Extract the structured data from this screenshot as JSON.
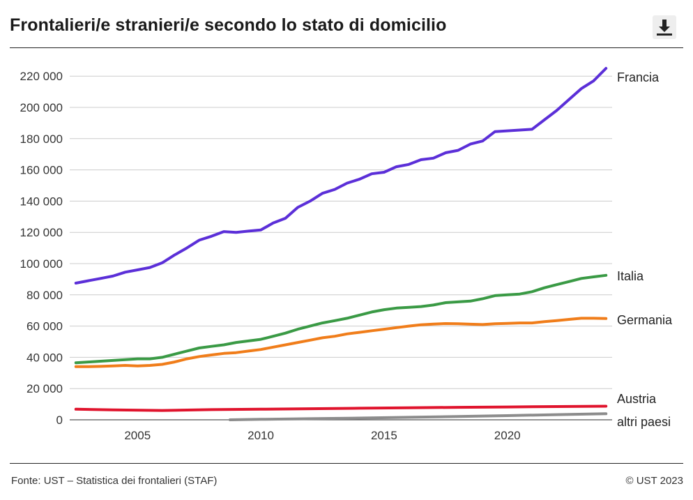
{
  "header": {
    "title": "Frontalieri/e stranieri/e secondo lo stato di domicilio",
    "download_icon": "download-icon"
  },
  "footer": {
    "source": "Fonte: UST – Statistica dei frontalieri (STAF)",
    "copyright": "© UST 2023"
  },
  "chart_data": {
    "type": "line",
    "xlim": [
      2002.25,
      2024.25
    ],
    "ylim": [
      0,
      225000
    ],
    "yticks": [
      0,
      20000,
      40000,
      60000,
      80000,
      100000,
      120000,
      140000,
      160000,
      180000,
      200000,
      220000
    ],
    "ytick_labels": [
      "0",
      "20 000",
      "40 000",
      "60 000",
      "80 000",
      "100 000",
      "120 000",
      "140 000",
      "160 000",
      "180 000",
      "200 000",
      "220 000"
    ],
    "xticks": [
      2005,
      2010,
      2015,
      2020
    ],
    "xtick_labels": [
      "2005",
      "2010",
      "2015",
      "2020"
    ],
    "grid": "horizontal",
    "legend": "direct labels at right end of lines",
    "series": [
      {
        "name": "Francia",
        "color": "#5b2fd8",
        "x": [
          2002.5,
          2003.0,
          2003.5,
          2004.0,
          2004.5,
          2005.0,
          2005.5,
          2006.0,
          2006.5,
          2007.0,
          2007.5,
          2008.0,
          2008.5,
          2009.0,
          2009.5,
          2010.0,
          2010.5,
          2011.0,
          2011.5,
          2012.0,
          2012.5,
          2013.0,
          2013.5,
          2014.0,
          2014.5,
          2015.0,
          2015.5,
          2016.0,
          2016.5,
          2017.0,
          2017.5,
          2018.0,
          2018.5,
          2019.0,
          2019.5,
          2020.0,
          2020.5,
          2021.0,
          2021.5,
          2022.0,
          2022.5,
          2023.0,
          2023.5,
          2024.0
        ],
        "values": [
          87500,
          89000,
          90500,
          92000,
          94500,
          96000,
          97500,
          100500,
          105500,
          110000,
          115000,
          117500,
          120500,
          120000,
          120800,
          121500,
          126000,
          129000,
          136000,
          140000,
          145000,
          147500,
          151500,
          154000,
          157500,
          158500,
          162000,
          163500,
          166500,
          167500,
          171000,
          172500,
          176500,
          178500,
          184500,
          185000,
          185500,
          186000,
          192000,
          198000,
          205000,
          212000,
          217000,
          225000
        ]
      },
      {
        "name": "Italia",
        "color": "#3a9a45",
        "x": [
          2002.5,
          2003.0,
          2003.5,
          2004.0,
          2004.5,
          2005.0,
          2005.5,
          2006.0,
          2006.5,
          2007.0,
          2007.5,
          2008.0,
          2008.5,
          2009.0,
          2009.5,
          2010.0,
          2010.5,
          2011.0,
          2011.5,
          2012.0,
          2012.5,
          2013.0,
          2013.5,
          2014.0,
          2014.5,
          2015.0,
          2015.5,
          2016.0,
          2016.5,
          2017.0,
          2017.5,
          2018.0,
          2018.5,
          2019.0,
          2019.5,
          2020.0,
          2020.5,
          2021.0,
          2021.5,
          2022.0,
          2022.5,
          2023.0,
          2023.5,
          2024.0
        ],
        "values": [
          36500,
          37000,
          37500,
          38000,
          38500,
          39000,
          39000,
          40000,
          42000,
          44000,
          46000,
          47000,
          48000,
          49500,
          50500,
          51500,
          53500,
          55500,
          58000,
          60000,
          62000,
          63500,
          65000,
          67000,
          69000,
          70500,
          71500,
          72000,
          72500,
          73500,
          75000,
          75500,
          76000,
          77500,
          79500,
          80000,
          80500,
          82000,
          84500,
          86500,
          88500,
          90500,
          91500,
          92500
        ]
      },
      {
        "name": "Germania",
        "color": "#f07d1a",
        "x": [
          2002.5,
          2003.0,
          2003.5,
          2004.0,
          2004.5,
          2005.0,
          2005.5,
          2006.0,
          2006.5,
          2007.0,
          2007.5,
          2008.0,
          2008.5,
          2009.0,
          2009.5,
          2010.0,
          2010.5,
          2011.0,
          2011.5,
          2012.0,
          2012.5,
          2013.0,
          2013.5,
          2014.0,
          2014.5,
          2015.0,
          2015.5,
          2016.0,
          2016.5,
          2017.0,
          2017.5,
          2018.0,
          2018.5,
          2019.0,
          2019.5,
          2020.0,
          2020.5,
          2021.0,
          2021.5,
          2022.0,
          2022.5,
          2023.0,
          2023.5,
          2024.0
        ],
        "values": [
          34000,
          34000,
          34200,
          34500,
          34800,
          34500,
          34800,
          35500,
          37000,
          39000,
          40500,
          41500,
          42500,
          43000,
          44000,
          45000,
          46500,
          48000,
          49500,
          51000,
          52500,
          53500,
          55000,
          56000,
          57000,
          58000,
          59000,
          60000,
          60800,
          61300,
          61600,
          61500,
          61200,
          61000,
          61500,
          61700,
          62000,
          62000,
          62800,
          63500,
          64300,
          65000,
          65000,
          64800
        ]
      },
      {
        "name": "Austria",
        "color": "#e0142d",
        "x": [
          2002.5,
          2004.0,
          2006.0,
          2008.0,
          2010.0,
          2012.0,
          2014.0,
          2016.0,
          2018.0,
          2020.0,
          2022.0,
          2024.0
        ],
        "values": [
          6800,
          6400,
          6000,
          6500,
          6800,
          7100,
          7400,
          7700,
          8000,
          8200,
          8500,
          8700
        ]
      },
      {
        "name": "altri paesi",
        "color": "#8c8c8c",
        "x": [
          2008.75,
          2010.0,
          2012.0,
          2014.0,
          2016.0,
          2018.0,
          2020.0,
          2022.0,
          2024.0
        ],
        "values": [
          0,
          300,
          700,
          1100,
          1600,
          2100,
          2700,
          3300,
          3900
        ]
      }
    ]
  }
}
